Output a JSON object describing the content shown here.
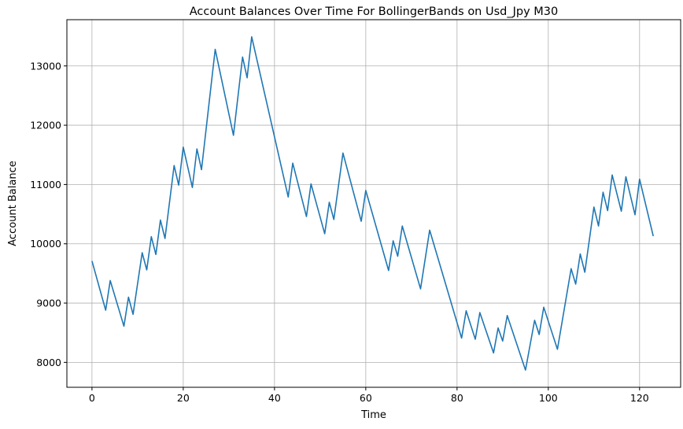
{
  "chart_data": {
    "type": "line",
    "title": "Account Balances Over Time For BollingerBands on Usd_Jpy M30",
    "xlabel": "Time",
    "ylabel": "Account Balance",
    "xlim": [
      -5.5,
      129
    ],
    "ylim": [
      7580,
      13780
    ],
    "xticks": [
      0,
      20,
      40,
      60,
      80,
      100,
      120
    ],
    "yticks": [
      8000,
      9000,
      10000,
      11000,
      12000,
      13000
    ],
    "grid": true,
    "line_color": "#1f77b4",
    "series": [
      {
        "x": [
          0,
          3,
          4,
          7,
          8,
          9,
          11,
          12,
          13,
          14,
          15,
          16,
          18,
          19,
          20,
          22,
          23,
          24,
          27,
          31,
          33,
          34,
          35,
          43,
          44,
          47,
          48,
          51,
          52,
          53,
          55,
          59,
          60,
          65,
          66,
          67,
          68,
          72,
          74,
          81,
          82,
          84,
          85,
          88,
          89,
          90,
          91,
          95,
          97,
          98,
          99,
          102,
          105,
          106,
          107,
          108,
          110,
          111,
          112,
          113,
          114,
          116,
          117,
          119,
          120,
          123
        ],
        "values": [
          9710,
          8880,
          9380,
          8610,
          9100,
          8810,
          9850,
          9560,
          10120,
          9820,
          10400,
          10090,
          11320,
          10990,
          11630,
          10950,
          11600,
          11250,
          13280,
          11830,
          13150,
          12800,
          13490,
          10790,
          11360,
          10460,
          11010,
          10170,
          10700,
          10410,
          11530,
          10380,
          10900,
          9550,
          10050,
          9790,
          10300,
          9240,
          10230,
          8410,
          8870,
          8390,
          8840,
          8160,
          8580,
          8360,
          8790,
          7870,
          8710,
          8470,
          8930,
          8220,
          9580,
          9320,
          9830,
          9520,
          10620,
          10300,
          10870,
          10560,
          11160,
          10550,
          11130,
          10490,
          11090,
          10130
        ]
      }
    ]
  }
}
